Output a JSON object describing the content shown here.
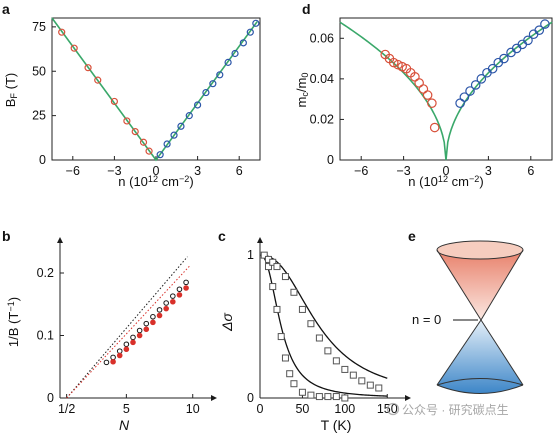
{
  "panel_labels": [
    "a",
    "d",
    "b",
    "c",
    "e"
  ],
  "watermark": "公众号 · 研究碳点生",
  "chart_data": [
    {
      "id": "a",
      "type": "scatter",
      "xlabel_parts": [
        "n (10",
        "12",
        " cm",
        "−2",
        ")"
      ],
      "ylabel_parts": [
        "B",
        "F",
        " (T)"
      ],
      "xlim": [
        -7.5,
        7.5
      ],
      "ylim": [
        0,
        80
      ],
      "xticks": [
        -6,
        -3,
        0,
        3,
        6
      ],
      "xticklabels": [
        "−6",
        "−3",
        "0",
        "3",
        "6"
      ],
      "yticks": [
        0,
        25,
        50,
        75
      ],
      "yticklabels": [
        "0",
        "25",
        "50",
        "75"
      ],
      "fit": {
        "name": "",
        "color": "#3aa86a",
        "x": [
          -7.5,
          0,
          7.3
        ],
        "y": [
          80,
          0,
          78
        ]
      },
      "series": [
        {
          "name": "",
          "color": "#d8503a",
          "x": [
            -6.8,
            -5.9,
            -4.9,
            -4.2,
            -3.0,
            -2.1,
            -1.5,
            -0.9,
            -0.5
          ],
          "y": [
            72,
            63,
            52,
            45,
            33,
            22,
            16,
            10,
            5
          ]
        },
        {
          "name": "",
          "color": "#2b55a8",
          "x": [
            0.3,
            0.8,
            1.3,
            1.8,
            2.4,
            3.0,
            3.6,
            4.1,
            4.6,
            5.2,
            5.7,
            6.3,
            6.8,
            7.2
          ],
          "y": [
            3,
            9,
            14,
            19,
            25,
            31,
            38,
            43,
            48,
            55,
            60,
            66,
            72,
            77
          ]
        }
      ]
    },
    {
      "id": "d",
      "type": "scatter",
      "xlabel_parts": [
        "n (10",
        "12",
        " cm",
        "−2",
        ")"
      ],
      "ylabel_parts": [
        "m",
        "c",
        "/m",
        "0",
        ""
      ],
      "xlim": [
        -7.5,
        7.5
      ],
      "ylim": [
        0,
        0.07
      ],
      "xticks": [
        -6,
        -3,
        0,
        3,
        6
      ],
      "xticklabels": [
        "−6",
        "−3",
        "0",
        "3",
        "6"
      ],
      "yticks": [
        0,
        0.02,
        0.04,
        0.06
      ],
      "yticklabels": [
        "0",
        "0.02",
        "0.04",
        "0.06"
      ],
      "fit": {
        "name": "",
        "color": "#3aa86a",
        "k": 0.0248,
        "xmin": -7.5,
        "xmax": 7.5
      },
      "series": [
        {
          "name": "",
          "color": "#d8503a",
          "x": [
            -4.3,
            -4.0,
            -3.7,
            -3.4,
            -3.1,
            -2.8,
            -2.5,
            -2.2,
            -1.9,
            -1.6,
            -1.3,
            -1.0,
            -0.8
          ],
          "y": [
            0.052,
            0.05,
            0.048,
            0.047,
            0.046,
            0.045,
            0.043,
            0.041,
            0.038,
            0.035,
            0.032,
            0.028,
            0.016
          ]
        },
        {
          "name": "",
          "color": "#2b55a8",
          "x": [
            1.0,
            1.3,
            1.7,
            2.1,
            2.5,
            2.9,
            3.3,
            3.7,
            4.1,
            4.6,
            5.0,
            5.4,
            5.8,
            6.2,
            6.6,
            7.0
          ],
          "y": [
            0.028,
            0.031,
            0.034,
            0.037,
            0.04,
            0.043,
            0.045,
            0.048,
            0.05,
            0.053,
            0.055,
            0.057,
            0.059,
            0.062,
            0.064,
            0.067
          ]
        }
      ]
    },
    {
      "id": "b",
      "type": "scatter",
      "xlabel": "N",
      "ylabel_parts": [
        "1/B (T",
        "−1",
        ")"
      ],
      "xlim": [
        0,
        11
      ],
      "ylim": [
        0,
        0.24
      ],
      "xticks": [
        0.5,
        5,
        10
      ],
      "xticklabels": [
        "1/2",
        "5",
        "10"
      ],
      "yticks": [
        0,
        0.1,
        0.2
      ],
      "yticklabels": [
        "0",
        "0.1",
        "0.2"
      ],
      "series": [
        {
          "name": "",
          "color": "#1a1a1a",
          "filled": false,
          "x": [
            3.5,
            4,
            4.5,
            5,
            5.5,
            6,
            6.5,
            7,
            7.5,
            8,
            8.5,
            9,
            9.5
          ],
          "y": [
            0.057,
            0.065,
            0.075,
            0.086,
            0.097,
            0.108,
            0.119,
            0.13,
            0.141,
            0.152,
            0.163,
            0.174,
            0.185
          ],
          "line_x": [
            0.5,
            9.6
          ],
          "line_y": [
            0,
            0.226
          ]
        },
        {
          "name": "",
          "color": "#d8302a",
          "filled": true,
          "x": [
            4,
            4.5,
            5,
            5.5,
            6,
            6.5,
            7,
            7.5,
            8,
            8.5,
            9,
            9.5
          ],
          "y": [
            0.058,
            0.068,
            0.078,
            0.089,
            0.1,
            0.11,
            0.121,
            0.132,
            0.143,
            0.154,
            0.165,
            0.176
          ],
          "line_x": [
            0.5,
            9.8
          ],
          "line_y": [
            0,
            0.212
          ]
        }
      ]
    },
    {
      "id": "c",
      "type": "scatter",
      "xlabel": "T (K)",
      "ylabel": "Δσ",
      "xlim": [
        0,
        165
      ],
      "ylim": [
        0,
        1.05
      ],
      "xticks": [
        0,
        50,
        100,
        150
      ],
      "xticklabels": [
        "0",
        "50",
        "100",
        "150"
      ],
      "yticks": [
        0,
        1
      ],
      "yticklabels": [
        "0",
        "1"
      ],
      "series": [
        {
          "name": "",
          "color": "#555555",
          "tau": 25,
          "x": [
            10,
            15,
            20,
            25,
            30,
            35,
            40,
            50,
            60,
            70,
            80,
            90,
            100
          ],
          "y": [
            0.92,
            0.78,
            0.62,
            0.43,
            0.28,
            0.17,
            0.1,
            0.04,
            0.02,
            0.01,
            0.01,
            0.01,
            0.0
          ]
        },
        {
          "name": "",
          "color": "#555555",
          "tau": 70,
          "x": [
            5,
            10,
            15,
            20,
            30,
            40,
            50,
            60,
            70,
            80,
            90,
            100,
            110,
            120,
            130,
            140
          ],
          "y": [
            1.0,
            0.97,
            0.95,
            0.92,
            0.85,
            0.74,
            0.62,
            0.52,
            0.42,
            0.33,
            0.26,
            0.2,
            0.16,
            0.12,
            0.09,
            0.07
          ]
        }
      ]
    },
    {
      "id": "e",
      "type": "diagram",
      "label": "n = 0"
    }
  ]
}
